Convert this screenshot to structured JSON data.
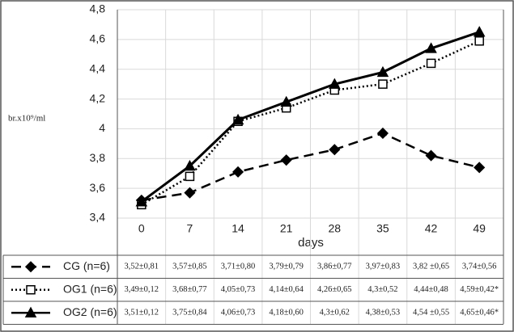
{
  "chart_data": {
    "type": "line",
    "y_label": "br.x10⁹/ml",
    "x_label": "days",
    "categories": [
      "0",
      "7",
      "14",
      "21",
      "28",
      "35",
      "42",
      "49"
    ],
    "ylim": [
      3.4,
      4.8
    ],
    "yticks": [
      {
        "value": 3.4,
        "label": "3,4"
      },
      {
        "value": 3.6,
        "label": "3,6"
      },
      {
        "value": 3.8,
        "label": "3,8"
      },
      4,
      {
        "value": 4.2,
        "label": "4,2"
      },
      {
        "value": 4.4,
        "label": "4,4"
      },
      {
        "value": 4.6,
        "label": "4,6"
      },
      {
        "value": 4.8,
        "label": "4,8"
      }
    ],
    "grid": true,
    "series": [
      {
        "name": "CG (n=6)",
        "color": "#000000",
        "dash": "dashed",
        "marker": "diamond",
        "values": [
          3.52,
          3.57,
          3.71,
          3.79,
          3.86,
          3.97,
          3.82,
          3.74
        ],
        "value_labels": [
          "3,52±0,81",
          "3,57±0,85",
          "3,71±0,80",
          "3,79±0,79",
          "3,86±0,77",
          "3,97±0,83",
          "3,82 ±0,65",
          "3,74±0,56"
        ]
      },
      {
        "name": "OG1 (n=6)",
        "color": "#000000",
        "dash": "dotted",
        "marker": "square",
        "values": [
          3.49,
          3.68,
          4.05,
          4.14,
          4.26,
          4.3,
          4.44,
          4.59
        ],
        "value_labels": [
          "3,49±0,12",
          "3,68±0,77",
          "4,05±0,73",
          "4,14±0,64",
          "4,26±0,65",
          "4,3±0,52",
          "4,44±0,48",
          "4,59±0,42*"
        ]
      },
      {
        "name": "OG2 (n=6)",
        "color": "#000000",
        "dash": "solid",
        "marker": "triangle",
        "values": [
          3.51,
          3.75,
          4.06,
          4.18,
          4.3,
          4.38,
          4.54,
          4.65
        ],
        "value_labels": [
          "3,51±0,12",
          "3,75±0,84",
          "4,06±0,73",
          "4,18±0,60",
          "4,3±0,62",
          "4,38±0,53",
          "4,54 ±0,55",
          "4,65±0,46*"
        ]
      }
    ]
  }
}
